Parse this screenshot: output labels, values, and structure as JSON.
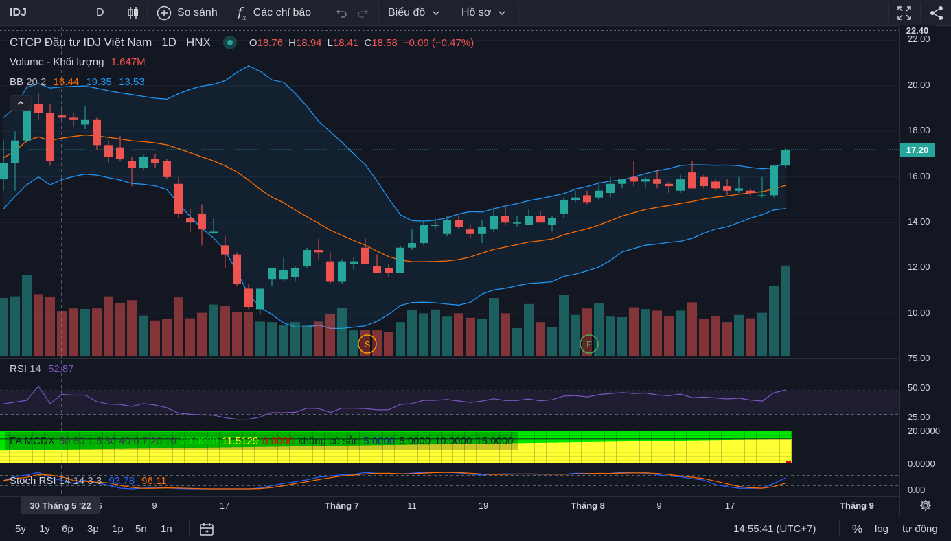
{
  "toolbar": {
    "symbol": "IDJ",
    "interval": "D",
    "compare": "So sánh",
    "indicators": "Các chỉ báo",
    "chart_type": "Biểu đồ",
    "profile": "Hồ sơ"
  },
  "legend": {
    "title": "CTCP Đầu tư IDJ Việt Nam",
    "interval": "1D",
    "exchange": "HNX",
    "o_label": "O",
    "o_value": "18.76",
    "h_label": "H",
    "h_value": "18.94",
    "l_label": "L",
    "l_value": "18.41",
    "c_label": "C",
    "c_value": "18.58",
    "change": "−0.09 (−0.47%)",
    "volume_name": "Volume - Khối lượng",
    "volume_value": "1.647M",
    "bb_name": "BB",
    "bb_params": "20 2",
    "bb_basis": "16.44",
    "bb_upper": "19.35",
    "bb_lower": "13.53"
  },
  "rsi": {
    "name": "RSI",
    "param": "14",
    "value": "52.87"
  },
  "fa": {
    "name": "FA MCDX",
    "params": "50 50 1.5 30 40 0.7 20 10",
    "v1": "20.0000",
    "v2": "11.5129",
    "v3": "0.0000",
    "na": "không có sẵn",
    "v4": "5.0000",
    "v5": "5.0000",
    "v6": "10.0000",
    "v7": "15.0000"
  },
  "stoch": {
    "name": "Stoch RSI",
    "params": "14 14 3 3",
    "k": "93.78",
    "d": "96.11"
  },
  "price_axis": {
    "top": "22.40",
    "labels": [
      "22.00",
      "20.00",
      "18.00",
      "16.00",
      "14.00",
      "12.00",
      "10.00"
    ],
    "last_price": "17.20",
    "rsi_labels": [
      "75.00",
      "50.00",
      "25.00"
    ],
    "fa_labels": [
      "20.0000",
      "0.0000"
    ],
    "stoch_label": "0.00"
  },
  "time_axis": {
    "crosshair_date": "30 Tháng 5 '22",
    "labels": [
      "6",
      "9",
      "17",
      "Tháng 7",
      "11",
      "19",
      "Tháng 8",
      "9",
      "17",
      "Tháng 9"
    ]
  },
  "bottom": {
    "ranges": [
      "5y",
      "1y",
      "6p",
      "3p",
      "1p",
      "5n",
      "1n"
    ],
    "time": "14:55:41 (UTC+7)",
    "percent": "%",
    "log": "log",
    "auto": "tự động"
  },
  "markers": {
    "split": "S",
    "financial": "F"
  },
  "colors": {
    "up": "#26a69a",
    "down": "#ef5350",
    "bb_band": "#2196f3",
    "bb_basis": "#ff6d00",
    "rsi": "#7e57c2",
    "stoch_k": "#2962ff",
    "stoch_d": "#ff6d00"
  },
  "candles": [
    [
      15.9,
      17.6,
      15.4,
      16.6
    ],
    [
      16.6,
      18.0,
      15.4,
      17.6
    ],
    [
      17.6,
      19.6,
      17.5,
      19.2
    ],
    [
      19.2,
      19.7,
      18.5,
      18.8
    ],
    [
      18.8,
      19.2,
      16.5,
      16.7
    ],
    [
      18.7,
      19.1,
      18.4,
      18.6
    ],
    [
      18.6,
      18.8,
      18.2,
      18.5
    ],
    [
      18.3,
      19.1,
      18.1,
      18.5
    ],
    [
      18.5,
      18.6,
      17.2,
      17.4
    ],
    [
      17.4,
      17.6,
      16.6,
      16.9
    ],
    [
      17.3,
      17.8,
      16.7,
      16.8
    ],
    [
      16.7,
      16.9,
      15.6,
      16.4
    ],
    [
      16.4,
      17.0,
      16.3,
      16.9
    ],
    [
      16.8,
      17.0,
      16.4,
      16.6
    ],
    [
      16.7,
      16.8,
      15.9,
      16.0
    ],
    [
      15.7,
      16.0,
      14.2,
      14.4
    ],
    [
      14.2,
      14.6,
      13.6,
      14.0
    ],
    [
      14.4,
      14.8,
      13.0,
      13.7
    ],
    [
      13.6,
      14.2,
      13.5,
      13.6
    ],
    [
      13.0,
      13.4,
      12.0,
      12.6
    ],
    [
      12.6,
      12.7,
      11.2,
      11.3
    ],
    [
      11.1,
      11.3,
      10.2,
      10.3
    ],
    [
      10.2,
      11.1,
      10.0,
      11.1
    ],
    [
      11.5,
      12.0,
      11.2,
      12.0
    ],
    [
      11.5,
      12.5,
      11.4,
      11.9
    ],
    [
      11.6,
      12.1,
      11.4,
      12.0
    ],
    [
      12.1,
      12.9,
      12.0,
      12.8
    ],
    [
      12.8,
      13.3,
      12.4,
      12.7
    ],
    [
      12.3,
      12.7,
      11.3,
      11.4
    ],
    [
      11.4,
      12.4,
      11.3,
      12.3
    ],
    [
      12.2,
      12.5,
      11.9,
      12.3
    ],
    [
      12.9,
      13.3,
      12.2,
      12.2
    ],
    [
      12.1,
      12.6,
      11.8,
      11.8
    ],
    [
      12.0,
      12.2,
      11.6,
      11.8
    ],
    [
      11.8,
      13.0,
      11.8,
      12.9
    ],
    [
      12.9,
      13.7,
      12.8,
      13.1
    ],
    [
      13.1,
      14.1,
      13.0,
      13.9
    ],
    [
      13.9,
      14.2,
      13.7,
      13.9
    ],
    [
      13.5,
      14.3,
      13.4,
      14.1
    ],
    [
      14.1,
      14.4,
      13.7,
      13.8
    ],
    [
      13.7,
      13.9,
      13.3,
      13.5
    ],
    [
      13.5,
      14.1,
      13.1,
      13.8
    ],
    [
      13.7,
      14.7,
      13.6,
      14.3
    ],
    [
      14.3,
      14.7,
      13.9,
      14.0
    ],
    [
      14.0,
      14.3,
      13.8,
      14.0
    ],
    [
      13.9,
      14.6,
      13.9,
      14.3
    ],
    [
      14.3,
      14.5,
      14.0,
      14.0
    ],
    [
      13.9,
      14.3,
      13.6,
      14.2
    ],
    [
      14.4,
      15.1,
      14.2,
      15.0
    ],
    [
      15.0,
      15.4,
      14.9,
      15.1
    ],
    [
      15.2,
      15.4,
      14.8,
      14.9
    ],
    [
      15.1,
      15.8,
      15.0,
      15.4
    ],
    [
      15.3,
      16.0,
      15.1,
      15.7
    ],
    [
      15.7,
      15.9,
      15.5,
      15.9
    ],
    [
      16.0,
      16.7,
      15.6,
      15.8
    ],
    [
      15.8,
      16.0,
      15.5,
      15.9
    ],
    [
      15.9,
      16.3,
      15.5,
      15.7
    ],
    [
      15.7,
      15.8,
      15.3,
      15.6
    ],
    [
      15.4,
      16.1,
      15.3,
      15.9
    ],
    [
      16.2,
      16.7,
      15.5,
      15.5
    ],
    [
      16.0,
      16.1,
      15.5,
      15.6
    ],
    [
      15.8,
      15.9,
      15.4,
      15.5
    ],
    [
      15.6,
      15.9,
      15.2,
      15.4
    ],
    [
      15.4,
      16.0,
      15.3,
      15.5
    ],
    [
      15.4,
      15.5,
      15.2,
      15.3
    ],
    [
      15.2,
      16.0,
      15.1,
      15.2
    ],
    [
      15.2,
      16.5,
      15.1,
      16.5
    ],
    [
      16.5,
      17.3,
      16.4,
      17.2
    ]
  ],
  "volumes": [
    1.05,
    1.08,
    1.47,
    1.12,
    1.07,
    0.81,
    0.86,
    0.85,
    0.86,
    1.08,
    0.95,
    1.01,
    0.73,
    0.64,
    0.67,
    1.06,
    0.68,
    0.78,
    0.93,
    0.9,
    0.8,
    0.8,
    0.62,
    0.61,
    0.55,
    0.61,
    0.56,
    0.62,
    0.76,
    0.87,
    0.46,
    0.47,
    0.46,
    0.43,
    0.61,
    0.83,
    0.77,
    0.84,
    0.71,
    0.77,
    0.69,
    0.67,
    1.05,
    0.77,
    0.5,
    0.94,
    0.61,
    0.52,
    1.11,
    0.74,
    0.86,
    0.96,
    0.71,
    0.7,
    0.88,
    0.85,
    0.82,
    0.72,
    0.82,
    0.97,
    0.67,
    0.72,
    0.61,
    0.74,
    0.68,
    0.78,
    1.27,
    1.64
  ]
}
